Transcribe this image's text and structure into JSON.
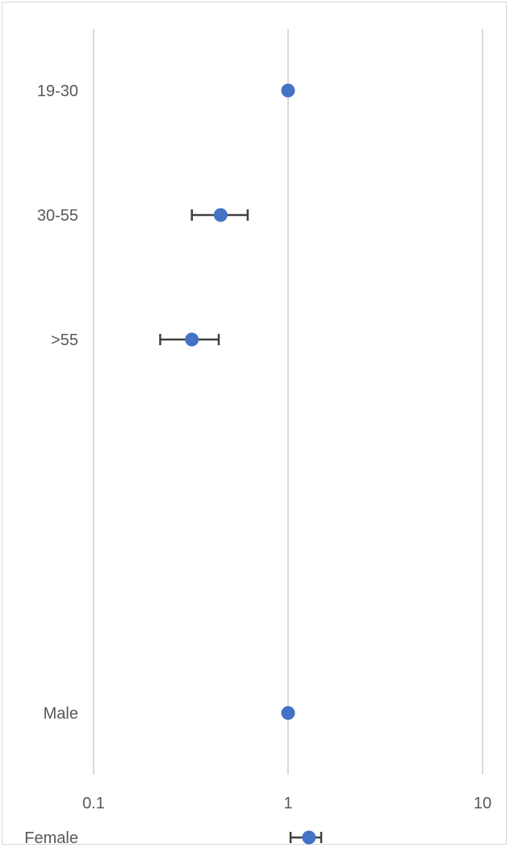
{
  "chart_data": {
    "type": "scatter",
    "title": "",
    "xlabel": "",
    "ylabel": "",
    "x_scale": "log",
    "xlim": [
      0.1,
      10
    ],
    "x_ticks": [
      0.1,
      1,
      10
    ],
    "x_tick_labels": [
      "0.1",
      "1",
      "10"
    ],
    "grid": "vertical",
    "legend": "none",
    "categories": [
      "19-30",
      "30-55",
      ">55",
      "",
      "",
      "Male",
      "Female"
    ],
    "points": [
      {
        "label": "19-30",
        "x": 1.0,
        "ci_low": null,
        "ci_high": null
      },
      {
        "label": "30-55",
        "x": 0.45,
        "ci_low": 0.32,
        "ci_high": 0.62
      },
      {
        "label": ">55",
        "x": 0.32,
        "ci_low": 0.22,
        "ci_high": 0.44
      },
      {
        "label": "Male",
        "x": 1.0,
        "ci_low": null,
        "ci_high": null
      },
      {
        "label": "Female",
        "x": 1.28,
        "ci_low": 1.03,
        "ci_high": 1.48
      }
    ],
    "marker_color": "#4472C4",
    "errorbar_color": "#404040",
    "gridline_color": "#d9d9d9"
  }
}
